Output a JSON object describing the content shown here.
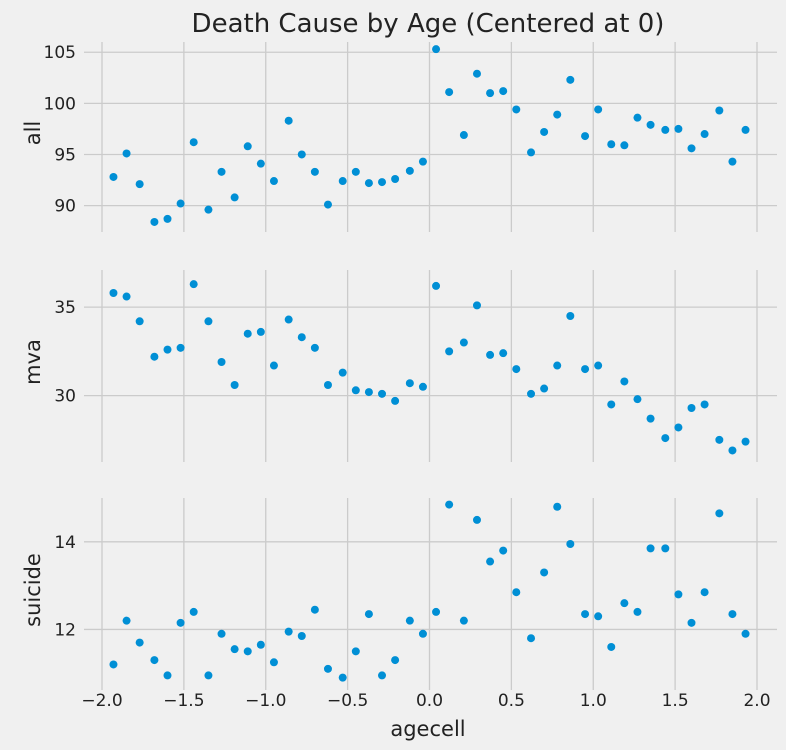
{
  "chart_data": {
    "type": "scatter",
    "title": "Death Cause by Age (Centered at 0)",
    "xlabel": "agecell",
    "xlim": [
      -2.0,
      2.0
    ],
    "xticks": [
      -2.0,
      -1.5,
      -1.0,
      -0.5,
      0.0,
      0.5,
      1.0,
      1.5,
      2.0
    ],
    "xtick_labels": [
      "−2.0",
      "−1.5",
      "−1.0",
      "−0.5",
      "0.0",
      "0.5",
      "1.0",
      "1.5",
      "2.0"
    ],
    "grid": true,
    "marker_color": "#008fd5",
    "x": [
      -1.93,
      -1.85,
      -1.77,
      -1.68,
      -1.6,
      -1.52,
      -1.44,
      -1.35,
      -1.27,
      -1.19,
      -1.11,
      -1.03,
      -0.95,
      -0.86,
      -0.78,
      -0.7,
      -0.62,
      -0.53,
      -0.45,
      -0.37,
      -0.29,
      -0.21,
      -0.12,
      -0.04,
      0.04,
      0.12,
      0.21,
      0.29,
      0.37,
      0.45,
      0.53,
      0.62,
      0.7,
      0.78,
      0.86,
      0.95,
      1.03,
      1.11,
      1.19,
      1.27,
      1.35,
      1.44,
      1.52,
      1.6,
      1.68,
      1.77,
      1.85,
      1.93
    ],
    "panels": [
      {
        "ylabel": "all",
        "ylim": [
          88.2,
          106
        ],
        "yticks": [
          90,
          95,
          100,
          105
        ],
        "ytick_labels": [
          "90",
          "95",
          "100",
          "105"
        ],
        "values": [
          92.8,
          95.1,
          92.1,
          88.4,
          88.7,
          90.2,
          96.2,
          89.6,
          93.3,
          90.8,
          95.8,
          94.1,
          92.4,
          98.3,
          95.0,
          93.3,
          90.1,
          92.4,
          93.3,
          92.2,
          92.3,
          92.6,
          93.4,
          94.3,
          105.3,
          101.1,
          96.9,
          102.9,
          101.0,
          101.2,
          99.4,
          95.2,
          97.2,
          98.9,
          102.3,
          96.8,
          99.4,
          96.0,
          95.9,
          98.6,
          97.9,
          97.4,
          97.5,
          95.6,
          97.0,
          99.3,
          94.3,
          97.4
        ]
      },
      {
        "ylabel": "mva",
        "ylim": [
          26.7,
          37.1
        ],
        "yticks": [
          30,
          35
        ],
        "ytick_labels": [
          "30",
          "35"
        ],
        "values": [
          35.8,
          35.6,
          34.2,
          32.2,
          32.6,
          32.7,
          36.3,
          34.2,
          31.9,
          30.6,
          33.5,
          33.6,
          31.7,
          34.3,
          33.3,
          32.7,
          30.6,
          31.3,
          30.3,
          30.2,
          30.1,
          29.7,
          30.7,
          30.5,
          36.2,
          32.5,
          33.0,
          35.1,
          32.3,
          32.4,
          31.5,
          30.1,
          30.4,
          31.7,
          34.5,
          31.5,
          31.7,
          29.5,
          30.8,
          29.8,
          28.7,
          27.6,
          28.2,
          29.3,
          29.5,
          27.5,
          26.9,
          27.4
        ]
      },
      {
        "ylabel": "suicide",
        "ylim": [
          10.8,
          15.0
        ],
        "yticks": [
          12,
          14
        ],
        "ytick_labels": [
          "12",
          "14"
        ],
        "values": [
          11.2,
          12.2,
          11.7,
          11.3,
          10.95,
          12.15,
          12.4,
          10.95,
          11.9,
          11.55,
          11.5,
          11.65,
          11.25,
          11.95,
          11.85,
          12.45,
          11.1,
          10.9,
          11.5,
          12.35,
          10.95,
          11.3,
          12.2,
          11.9,
          12.4,
          14.85,
          12.2,
          14.5,
          13.55,
          13.8,
          12.85,
          11.8,
          13.3,
          14.8,
          13.95,
          12.35,
          12.3,
          11.6,
          12.6,
          12.4,
          13.85,
          13.85,
          12.8,
          12.15,
          12.85,
          14.65,
          12.35,
          11.9
        ]
      }
    ]
  }
}
